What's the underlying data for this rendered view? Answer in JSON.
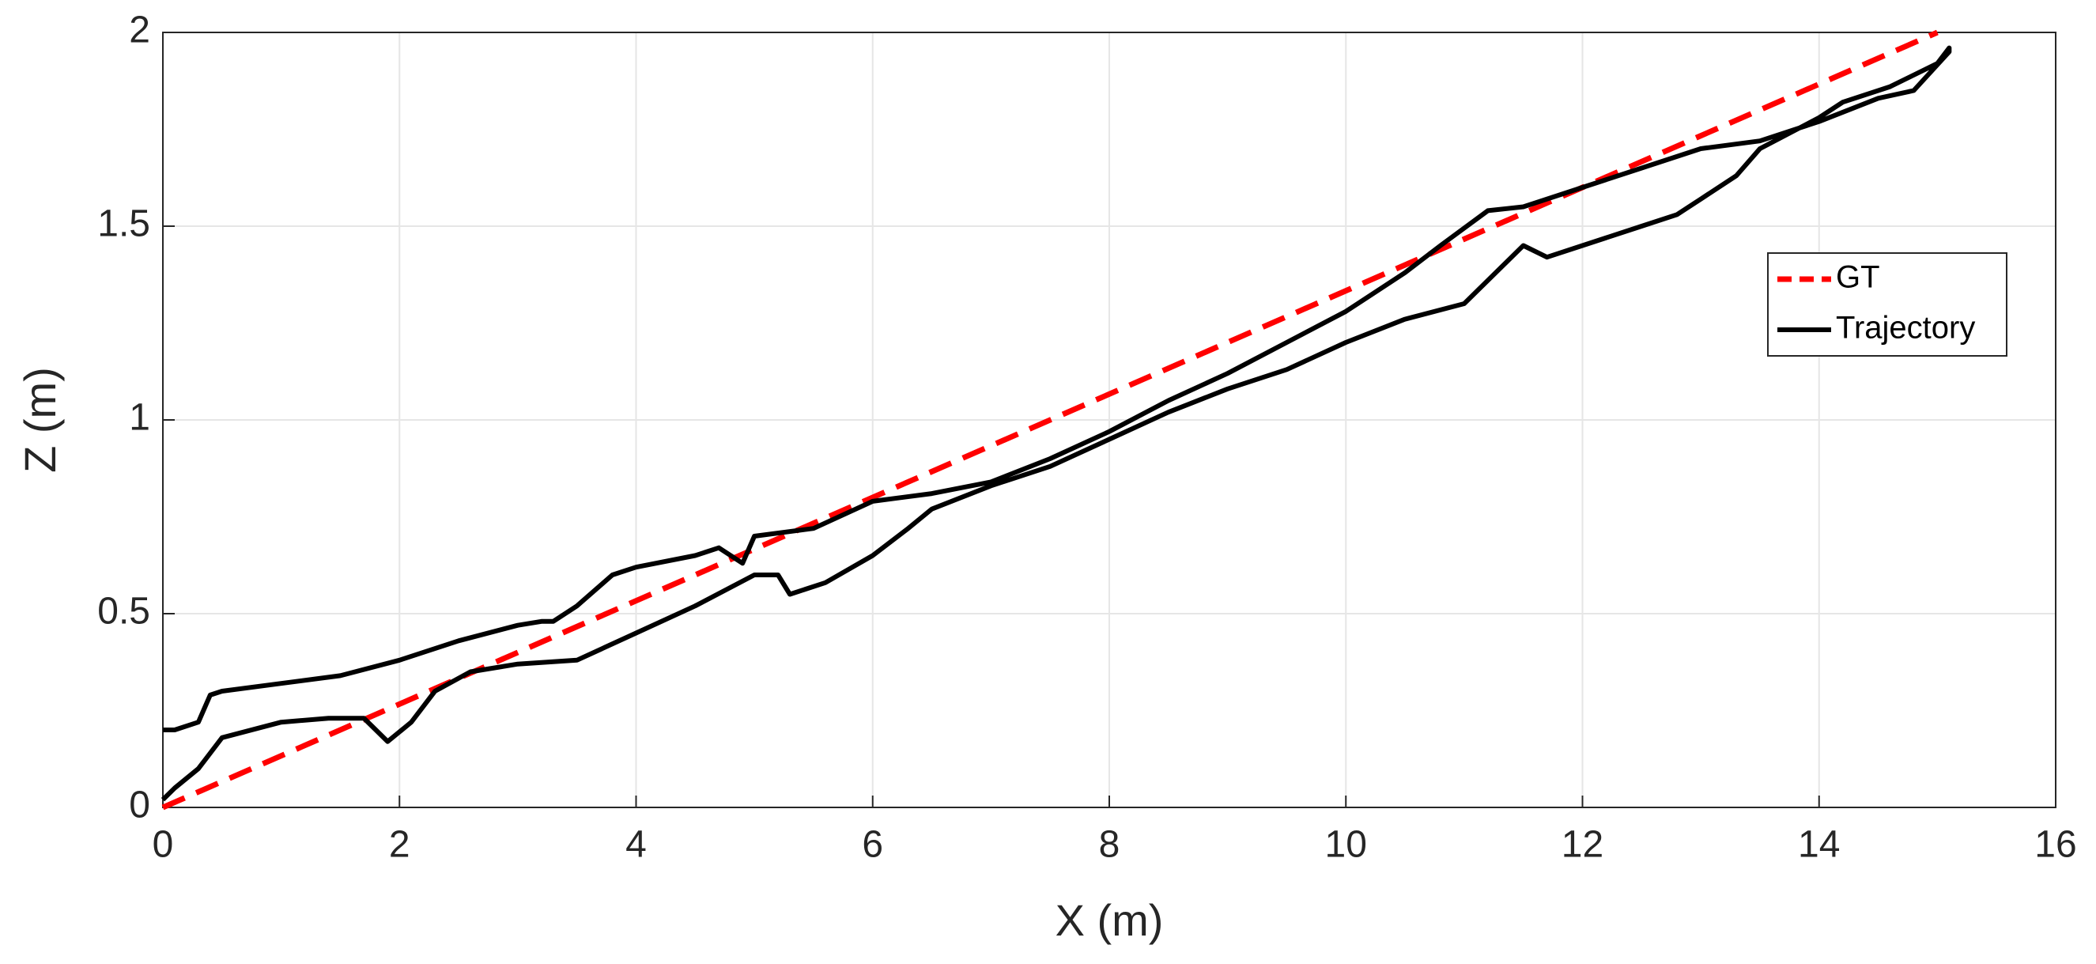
{
  "chart_data": {
    "type": "line",
    "xlabel": "X (m)",
    "ylabel": "Z (m)",
    "xlim": [
      0,
      16
    ],
    "xticks": [
      0,
      2,
      4,
      6,
      8,
      10,
      12,
      14,
      16
    ],
    "ylim": [
      0,
      2
    ],
    "yticks": [
      0,
      0.5,
      1,
      1.5,
      2
    ],
    "grid": true,
    "legend": "east",
    "series": [
      {
        "name": "GT",
        "color": "#ff0000",
        "dash": true,
        "x": [
          0,
          15
        ],
        "values": [
          0,
          2
        ]
      },
      {
        "name": "Trajectory",
        "color": "#000000",
        "dash": false,
        "x": [
          0,
          0.1,
          0.3,
          0.5,
          1,
          1.4,
          1.7,
          1.9,
          2.1,
          2.3,
          2.6,
          3,
          3.5,
          4,
          4.5,
          5,
          5.2,
          5.3,
          5.6,
          6,
          6.3,
          6.5,
          7,
          7.5,
          8,
          8.5,
          9,
          9.5,
          10,
          10.5,
          11,
          11.5,
          11.7,
          12,
          12.5,
          12.8,
          13,
          13.3,
          13.5,
          14,
          14.2,
          14.6,
          15,
          15.1,
          15.1,
          14.8,
          14.5,
          14,
          13.5,
          13,
          12.5,
          12,
          11.5,
          11.2,
          10.8,
          10.5,
          10,
          9.5,
          9,
          8.5,
          8,
          7.5,
          7,
          6.5,
          6,
          5.5,
          5,
          4.9,
          4.7,
          4.5,
          4,
          3.8,
          3.5,
          3.3,
          3.2,
          3,
          2.5,
          2,
          1.5,
          1,
          0.5,
          0.4,
          0.3,
          0.1,
          0
        ],
        "values": [
          0.02,
          0.05,
          0.1,
          0.18,
          0.22,
          0.23,
          0.23,
          0.17,
          0.22,
          0.3,
          0.35,
          0.37,
          0.38,
          0.45,
          0.52,
          0.6,
          0.6,
          0.55,
          0.58,
          0.65,
          0.72,
          0.77,
          0.83,
          0.88,
          0.95,
          1.02,
          1.08,
          1.13,
          1.2,
          1.26,
          1.3,
          1.45,
          1.42,
          1.45,
          1.5,
          1.53,
          1.57,
          1.63,
          1.7,
          1.78,
          1.82,
          1.86,
          1.92,
          1.96,
          1.95,
          1.85,
          1.83,
          1.77,
          1.72,
          1.7,
          1.65,
          1.6,
          1.55,
          1.54,
          1.45,
          1.38,
          1.28,
          1.2,
          1.12,
          1.05,
          0.97,
          0.9,
          0.84,
          0.81,
          0.79,
          0.72,
          0.7,
          0.63,
          0.67,
          0.65,
          0.62,
          0.6,
          0.52,
          0.48,
          0.48,
          0.47,
          0.43,
          0.38,
          0.34,
          0.32,
          0.3,
          0.29,
          0.22,
          0.2,
          0.2
        ]
      }
    ]
  }
}
